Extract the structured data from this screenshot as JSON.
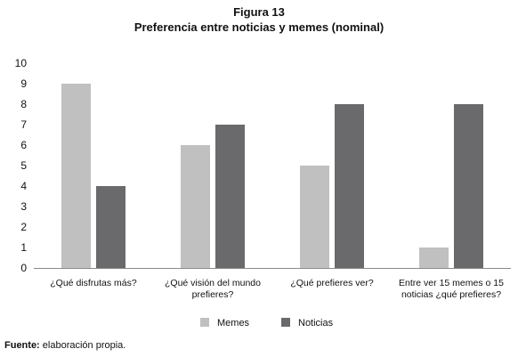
{
  "figure": {
    "label": "Figura 13",
    "title": "Preferencia entre noticias y memes (nominal)"
  },
  "chart_data": {
    "type": "bar",
    "categories": [
      [
        "¿Qué disfrutas más?"
      ],
      [
        "¿Qué visión del mundo",
        "prefieres?"
      ],
      [
        "¿Qué prefieres ver?"
      ],
      [
        "Entre ver 15 memes o 15",
        "noticias ¿qué prefieres?"
      ]
    ],
    "series": [
      {
        "name": "Memes",
        "values": [
          9,
          6,
          5,
          1
        ],
        "color": "#c0c0c0"
      },
      {
        "name": "Noticias",
        "values": [
          4,
          7,
          8,
          8
        ],
        "color": "#6a6a6c"
      }
    ],
    "ylim": [
      0,
      10
    ],
    "yticks": [
      "0",
      "1",
      "2",
      "3",
      "4",
      "5",
      "6",
      "7",
      "8",
      "9",
      "10"
    ],
    "grid": false,
    "legend": "bottom"
  },
  "source": {
    "label": "Fuente:",
    "text": " elaboración propia."
  }
}
